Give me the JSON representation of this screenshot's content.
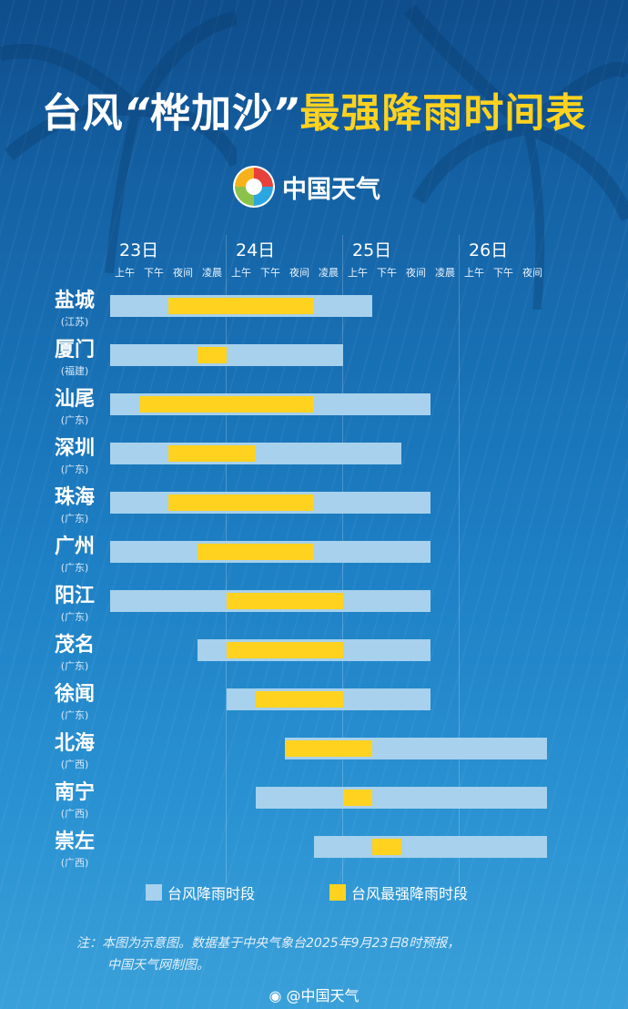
{
  "title": {
    "part1": "台风",
    "quote_open": "“",
    "name": "桦加沙",
    "quote_close": "”",
    "part2": "最强降雨时间表"
  },
  "logo": {
    "brand": "中国天气"
  },
  "days": [
    "23日",
    "24日",
    "25日",
    "26日"
  ],
  "periods": [
    "上午",
    "下午",
    "夜间",
    "凌晨",
    "上午",
    "下午",
    "夜间",
    "凌晨",
    "上午",
    "下午",
    "夜间",
    "凌晨",
    "上午",
    "下午",
    "夜间"
  ],
  "chart_data": {
    "type": "gantt",
    "title": "台风“桦加沙”最强降雨时间表",
    "time_unit_note": "slot index: 0=23日上午 ... 14=26日夜间; end exclusive",
    "series": [
      {
        "name": "台风降雨时段",
        "color": "#a7d1ec"
      },
      {
        "name": "台风最强降雨时段",
        "color": "#ffd21f"
      }
    ],
    "rows": [
      {
        "city": "盐城",
        "province": "(江苏)",
        "rain": [
          0,
          9
        ],
        "strong": [
          2,
          7
        ]
      },
      {
        "city": "厦门",
        "province": "(福建)",
        "rain": [
          0,
          8
        ],
        "strong": [
          3,
          4
        ]
      },
      {
        "city": "汕尾",
        "province": "(广东)",
        "rain": [
          0,
          11
        ],
        "strong": [
          1,
          7
        ]
      },
      {
        "city": "深圳",
        "province": "(广东)",
        "rain": [
          0,
          10
        ],
        "strong": [
          2,
          5
        ]
      },
      {
        "city": "珠海",
        "province": "(广东)",
        "rain": [
          0,
          11
        ],
        "strong": [
          2,
          7
        ]
      },
      {
        "city": "广州",
        "province": "(广东)",
        "rain": [
          0,
          11
        ],
        "strong": [
          3,
          7
        ]
      },
      {
        "city": "阳江",
        "province": "(广东)",
        "rain": [
          0,
          11
        ],
        "strong": [
          4,
          8
        ]
      },
      {
        "city": "茂名",
        "province": "(广东)",
        "rain": [
          3,
          11
        ],
        "strong": [
          4,
          8
        ]
      },
      {
        "city": "徐闻",
        "province": "(广东)",
        "rain": [
          4,
          11
        ],
        "strong": [
          5,
          8
        ]
      },
      {
        "city": "北海",
        "province": "(广西)",
        "rain": [
          6,
          15
        ],
        "strong": [
          6,
          9
        ]
      },
      {
        "city": "南宁",
        "province": "(广西)",
        "rain": [
          5,
          15
        ],
        "strong": [
          8,
          9
        ]
      },
      {
        "city": "崇左",
        "province": "(广西)",
        "rain": [
          7,
          15
        ],
        "strong": [
          9,
          10
        ]
      }
    ]
  },
  "legend": {
    "rain_label": "台风降雨时段",
    "strong_label": "台风最强降雨时段"
  },
  "note": {
    "line1": "注：本图为示意图。数据基于中央气象台2025年9月23日8时预报，",
    "line2": "中国天气网制图。"
  },
  "credit": "@中国天气"
}
